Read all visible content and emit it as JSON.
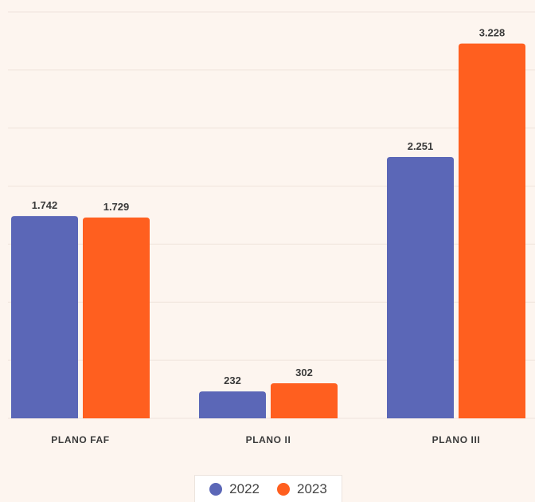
{
  "chart_data": {
    "type": "bar",
    "categories": [
      "PLANO FAF",
      "PLANO II",
      "PLANO III"
    ],
    "series": [
      {
        "name": "2022",
        "values": [
          1742,
          232,
          2251
        ],
        "labels": [
          "1.742",
          "232",
          "2.251"
        ],
        "color": "#5b67b7"
      },
      {
        "name": "2023",
        "values": [
          1729,
          302,
          3228
        ],
        "labels": [
          "1.729",
          "302",
          "3.228"
        ],
        "color": "#ff5f1f"
      }
    ],
    "ylim": [
      0,
      3500
    ],
    "grid": true,
    "legend_position": "bottom"
  }
}
